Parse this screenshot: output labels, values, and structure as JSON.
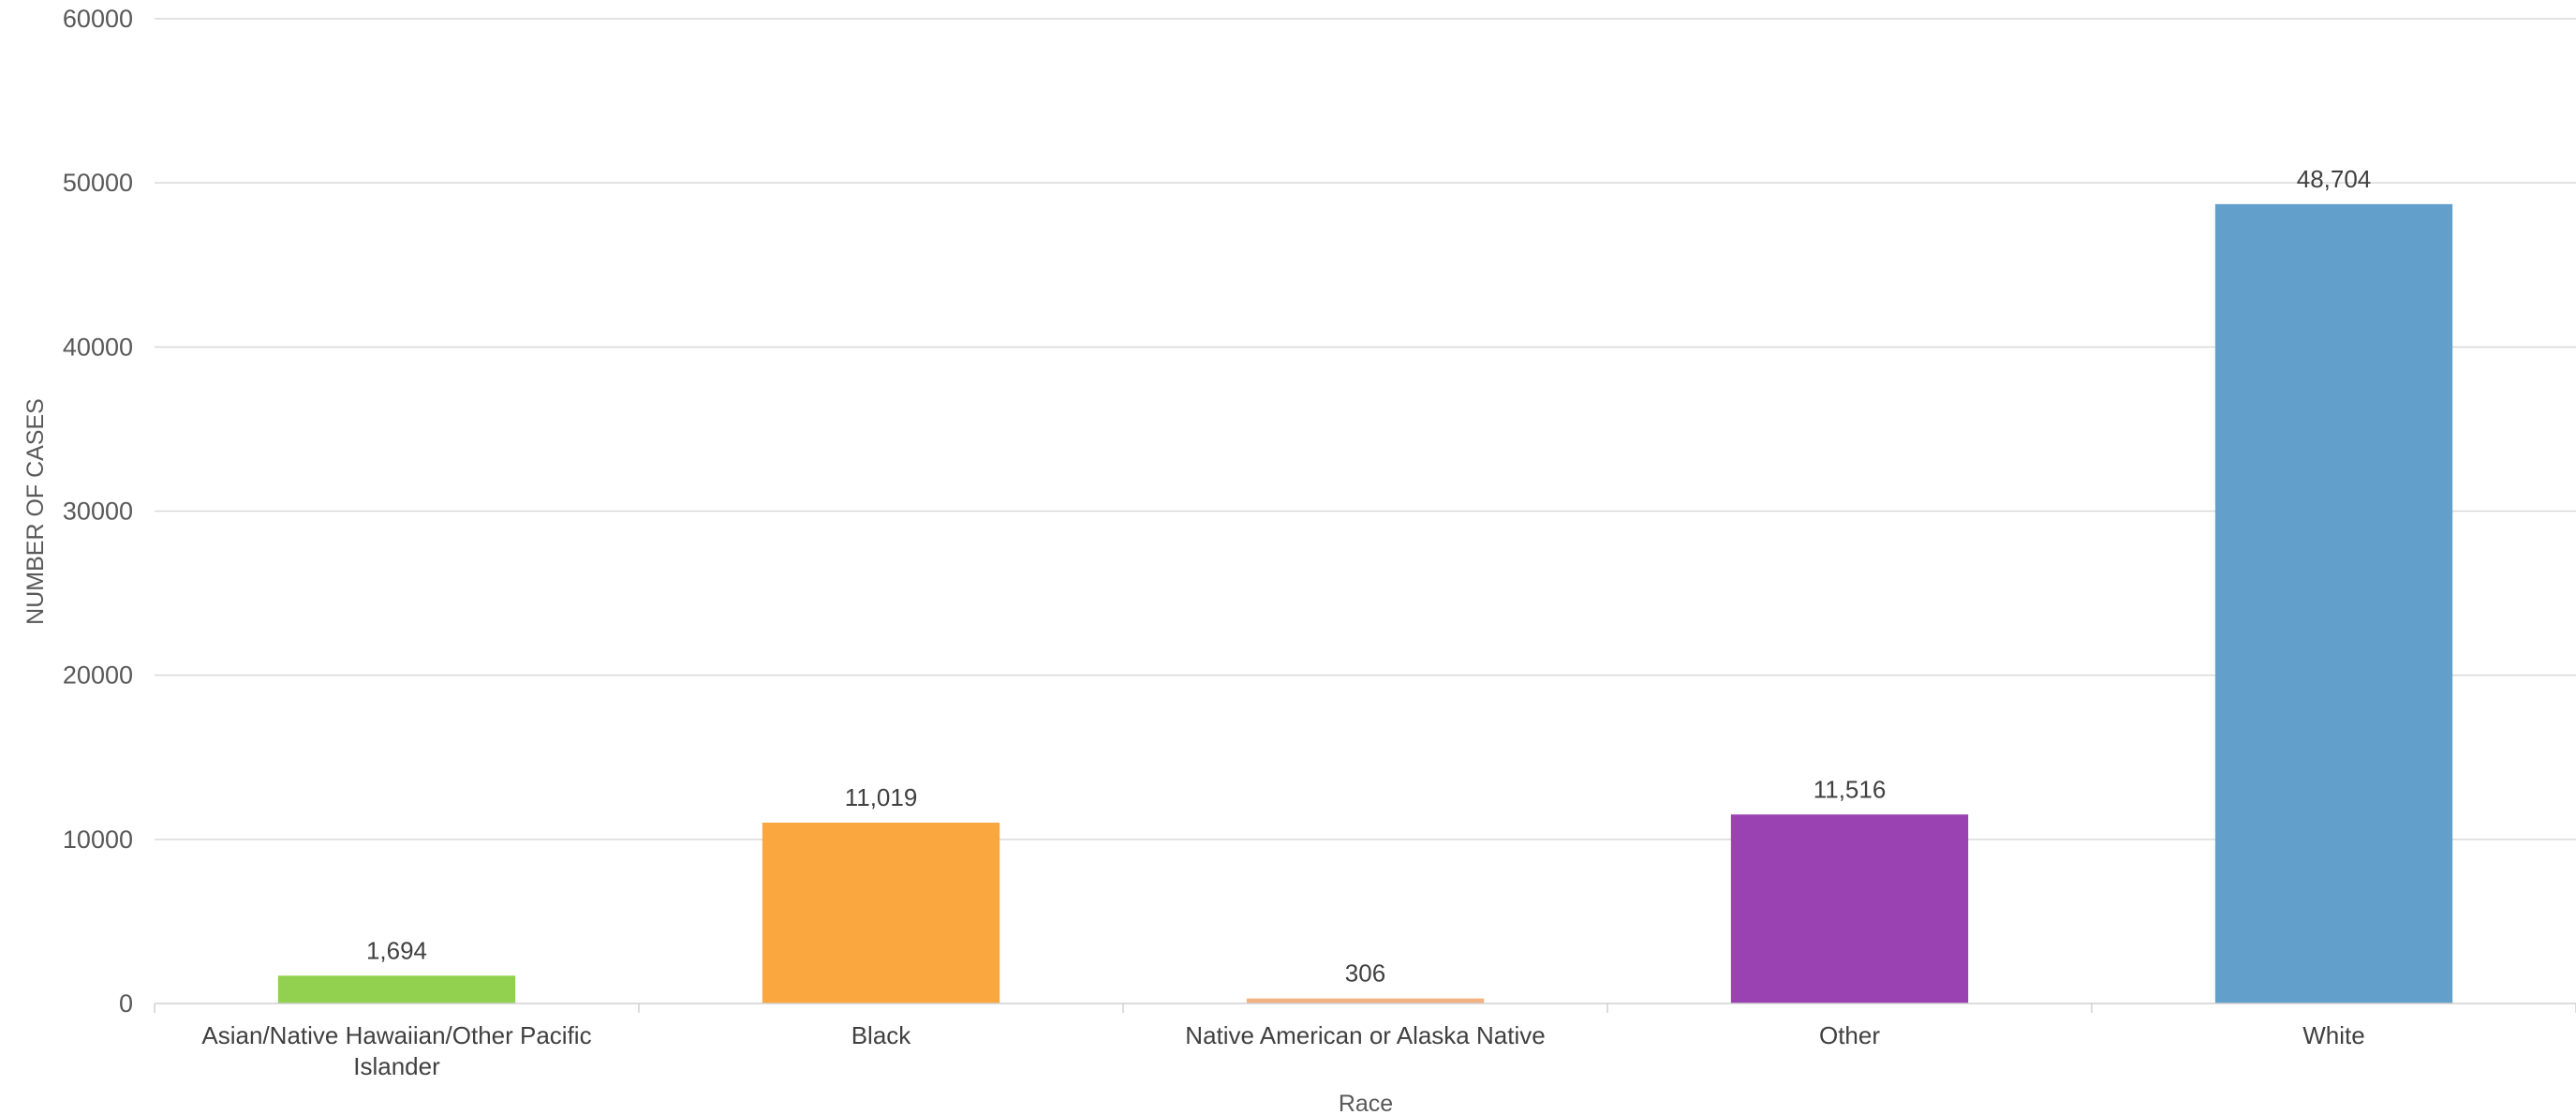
{
  "chart_data": {
    "type": "bar",
    "title": "",
    "xlabel": "Race",
    "ylabel": "NUMBER OF CASES",
    "categories": [
      [
        "Asian/Native Hawaiian/Other Pacific",
        "Islander"
      ],
      [
        "Black"
      ],
      [
        "Native American or Alaska Native"
      ],
      [
        "Other"
      ],
      [
        "White"
      ]
    ],
    "values": [
      1694,
      11019,
      306,
      11516,
      48704
    ],
    "value_labels": [
      "1,694",
      "11,019",
      "306",
      "11,516",
      "48,704"
    ],
    "colors": [
      "#92d050",
      "#fba73f",
      "#f4b183",
      "#9b42b3",
      "#62a0cb"
    ],
    "ylim": [
      0,
      60000
    ],
    "yticks": [
      0,
      10000,
      20000,
      30000,
      40000,
      50000,
      60000
    ],
    "ytick_labels": [
      "0",
      "10000",
      "20000",
      "30000",
      "40000",
      "50000",
      "60000"
    ],
    "grid": true,
    "legend": "none"
  }
}
